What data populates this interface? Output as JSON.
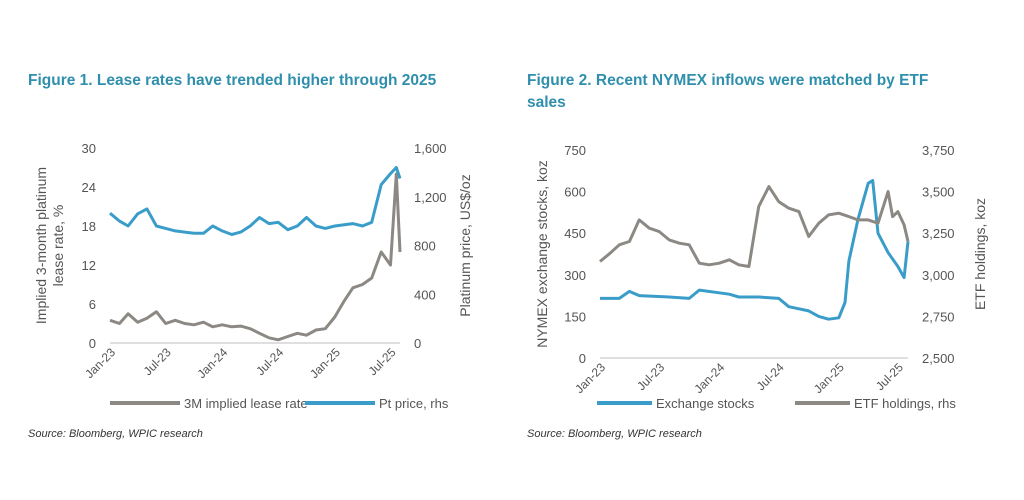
{
  "charts": [
    {
      "title": "Figure 1. Lease rates have trended higher through 2025",
      "source": "Source: Bloomberg, WPIC research",
      "type": "line",
      "left_axis": {
        "label": "Implied 3-month platinum lease rate, %",
        "label_lines": [
          "Implied 3-month platinum",
          "lease rate, %"
        ],
        "range": [
          0,
          30
        ],
        "ticks": [
          "0",
          "6",
          "12",
          "18",
          "24",
          "30"
        ]
      },
      "right_axis": {
        "label": "Platinum price, US$/oz",
        "range": [
          0,
          1600
        ],
        "ticks": [
          "0",
          "400",
          "800",
          "1,200",
          "1,600"
        ]
      },
      "x_ticks": [
        "Jan-23",
        "Jul-23",
        "Jan-24",
        "Jul-24",
        "Jan-25",
        "Jul-25"
      ],
      "series": [
        {
          "name": "3M implied lease rate",
          "axis": "left",
          "color": "#8c8883",
          "points": [
            [
              "2023-01-01",
              3.5
            ],
            [
              "2023-02-01",
              3.0
            ],
            [
              "2023-03-01",
              4.5
            ],
            [
              "2023-04-01",
              3.2
            ],
            [
              "2023-05-01",
              3.8
            ],
            [
              "2023-06-01",
              4.8
            ],
            [
              "2023-07-01",
              3.0
            ],
            [
              "2023-08-01",
              3.5
            ],
            [
              "2023-09-01",
              3.0
            ],
            [
              "2023-10-01",
              2.8
            ],
            [
              "2023-11-01",
              3.2
            ],
            [
              "2023-12-01",
              2.5
            ],
            [
              "2024-01-01",
              2.8
            ],
            [
              "2024-02-01",
              2.5
            ],
            [
              "2024-03-01",
              2.6
            ],
            [
              "2024-04-01",
              2.2
            ],
            [
              "2024-05-01",
              1.5
            ],
            [
              "2024-06-01",
              0.8
            ],
            [
              "2024-07-01",
              0.5
            ],
            [
              "2024-08-01",
              1.0
            ],
            [
              "2024-09-01",
              1.5
            ],
            [
              "2024-10-01",
              1.2
            ],
            [
              "2024-11-01",
              2.0
            ],
            [
              "2024-12-01",
              2.2
            ],
            [
              "2025-01-01",
              4.0
            ],
            [
              "2025-02-01",
              6.5
            ],
            [
              "2025-03-01",
              8.5
            ],
            [
              "2025-04-01",
              9.0
            ],
            [
              "2025-05-01",
              10.0
            ],
            [
              "2025-06-01",
              14.0
            ],
            [
              "2025-07-01",
              12.0
            ],
            [
              "2025-07-20",
              26.0
            ],
            [
              "2025-08-01",
              14.0
            ]
          ]
        },
        {
          "name": "Pt price, rhs",
          "axis": "right",
          "color": "#3a9dc9",
          "points": [
            [
              "2023-01-01",
              1065
            ],
            [
              "2023-02-01",
              1000
            ],
            [
              "2023-03-01",
              960
            ],
            [
              "2023-04-01",
              1060
            ],
            [
              "2023-05-01",
              1100
            ],
            [
              "2023-06-01",
              960
            ],
            [
              "2023-07-01",
              940
            ],
            [
              "2023-08-01",
              920
            ],
            [
              "2023-09-01",
              910
            ],
            [
              "2023-10-01",
              900
            ],
            [
              "2023-11-01",
              900
            ],
            [
              "2023-12-01",
              960
            ],
            [
              "2024-01-01",
              920
            ],
            [
              "2024-02-01",
              890
            ],
            [
              "2024-03-01",
              910
            ],
            [
              "2024-04-01",
              960
            ],
            [
              "2024-05-01",
              1030
            ],
            [
              "2024-06-01",
              980
            ],
            [
              "2024-07-01",
              990
            ],
            [
              "2024-08-01",
              930
            ],
            [
              "2024-09-01",
              960
            ],
            [
              "2024-10-01",
              1030
            ],
            [
              "2024-11-01",
              960
            ],
            [
              "2024-12-01",
              940
            ],
            [
              "2025-01-01",
              960
            ],
            [
              "2025-02-01",
              970
            ],
            [
              "2025-03-01",
              980
            ],
            [
              "2025-04-01",
              960
            ],
            [
              "2025-05-01",
              990
            ],
            [
              "2025-06-01",
              1300
            ],
            [
              "2025-07-01",
              1390
            ],
            [
              "2025-07-20",
              1440
            ],
            [
              "2025-08-01",
              1350
            ]
          ]
        }
      ]
    },
    {
      "title": "Figure 2. Recent NYMEX inflows were matched by ETF sales",
      "title_lines": [
        "Figure 2. Recent NYMEX inflows were matched by ETF",
        "sales"
      ],
      "source": "Source: Bloomberg, WPIC research",
      "type": "line",
      "left_axis": {
        "label": "NYMEX exchange stocks, koz",
        "range": [
          0,
          750
        ],
        "ticks": [
          "0",
          "150",
          "300",
          "450",
          "600",
          "750"
        ]
      },
      "right_axis": {
        "label": "ETF holdings, koz",
        "range": [
          2500,
          3750
        ],
        "ticks": [
          "2,500",
          "2,750",
          "3,000",
          "3,250",
          "3,500",
          "3,750"
        ]
      },
      "x_ticks": [
        "Jan-23",
        "Jul-23",
        "Jan-24",
        "Jul-24",
        "Jan-25",
        "Jul-25"
      ],
      "series": [
        {
          "name": "Exchange stocks",
          "axis": "left",
          "color": "#3a9dc9",
          "points": [
            [
              "2023-01-01",
              215
            ],
            [
              "2023-03-01",
              215
            ],
            [
              "2023-04-01",
              240
            ],
            [
              "2023-05-01",
              225
            ],
            [
              "2023-08-01",
              220
            ],
            [
              "2023-10-01",
              215
            ],
            [
              "2023-11-01",
              245
            ],
            [
              "2024-01-01",
              235
            ],
            [
              "2024-02-01",
              230
            ],
            [
              "2024-03-01",
              220
            ],
            [
              "2024-05-01",
              220
            ],
            [
              "2024-07-01",
              215
            ],
            [
              "2024-08-01",
              185
            ],
            [
              "2024-10-01",
              170
            ],
            [
              "2024-11-01",
              150
            ],
            [
              "2024-12-01",
              140
            ],
            [
              "2025-01-01",
              145
            ],
            [
              "2025-01-20",
              200
            ],
            [
              "2025-02-01",
              350
            ],
            [
              "2025-03-01",
              500
            ],
            [
              "2025-04-01",
              630
            ],
            [
              "2025-04-15",
              640
            ],
            [
              "2025-05-01",
              450
            ],
            [
              "2025-06-01",
              380
            ],
            [
              "2025-07-01",
              330
            ],
            [
              "2025-07-20",
              290
            ],
            [
              "2025-08-01",
              420
            ]
          ]
        },
        {
          "name": "ETF holdings, rhs",
          "axis": "right",
          "color": "#8c8883",
          "points": [
            [
              "2023-01-01",
              3080
            ],
            [
              "2023-02-01",
              3130
            ],
            [
              "2023-03-01",
              3180
            ],
            [
              "2023-04-01",
              3200
            ],
            [
              "2023-05-01",
              3330
            ],
            [
              "2023-06-01",
              3280
            ],
            [
              "2023-07-01",
              3260
            ],
            [
              "2023-08-01",
              3210
            ],
            [
              "2023-09-01",
              3190
            ],
            [
              "2023-10-01",
              3180
            ],
            [
              "2023-11-01",
              3070
            ],
            [
              "2023-12-01",
              3060
            ],
            [
              "2024-01-01",
              3070
            ],
            [
              "2024-02-01",
              3090
            ],
            [
              "2024-03-01",
              3060
            ],
            [
              "2024-04-01",
              3050
            ],
            [
              "2024-05-01",
              3410
            ],
            [
              "2024-06-01",
              3530
            ],
            [
              "2024-07-01",
              3440
            ],
            [
              "2024-08-01",
              3400
            ],
            [
              "2024-09-01",
              3380
            ],
            [
              "2024-10-01",
              3230
            ],
            [
              "2024-11-01",
              3310
            ],
            [
              "2024-12-01",
              3360
            ],
            [
              "2025-01-01",
              3370
            ],
            [
              "2025-02-01",
              3350
            ],
            [
              "2025-03-01",
              3330
            ],
            [
              "2025-04-01",
              3330
            ],
            [
              "2025-05-01",
              3310
            ],
            [
              "2025-06-01",
              3500
            ],
            [
              "2025-06-15",
              3350
            ],
            [
              "2025-07-01",
              3380
            ],
            [
              "2025-07-20",
              3300
            ],
            [
              "2025-08-01",
              3200
            ]
          ]
        }
      ]
    }
  ]
}
